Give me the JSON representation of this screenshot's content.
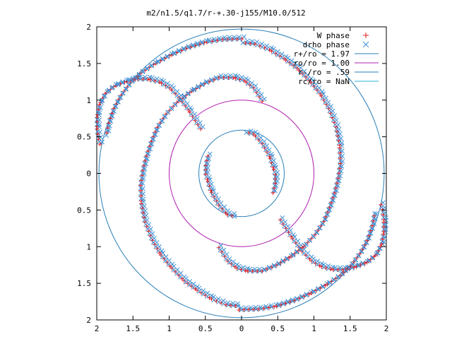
{
  "chart_data": {
    "type": "scatter",
    "title": "m2/n1.5/q1.7/r-+.30-j155/M10.0/512",
    "xlim": [
      -2,
      2
    ],
    "ylim": [
      -2,
      2
    ],
    "x_tick_labels": [
      "2",
      "1.5",
      "1",
      "0.5",
      "0",
      "0.5",
      "1",
      "1.5",
      "2"
    ],
    "y_tick_labels": [
      "2",
      "1.5",
      "1",
      "0.5",
      "0",
      "0.5",
      "1",
      "1.5",
      "2"
    ],
    "x_tick_values": [
      -2,
      -1.5,
      -1,
      -0.5,
      0,
      0.5,
      1,
      1.5,
      2
    ],
    "y_tick_values": [
      2,
      1.5,
      1,
      0.5,
      0,
      -0.5,
      -1,
      -1.5,
      -2
    ],
    "grid": false,
    "legend_position": "top-right",
    "legend": [
      {
        "label": "W phase",
        "color": "#e31a1c",
        "marker": "plus"
      },
      {
        "label": "drho phase",
        "color": "#3b8fd4",
        "marker": "cross"
      },
      {
        "label": "r+/ro = 1.97",
        "color": "#2a7fb8",
        "marker": "line"
      },
      {
        "label": "ro/ro = 1.00",
        "color": "#b021b0",
        "marker": "line"
      },
      {
        "label": "r-/ro = .59",
        "color": "#2a7fb8",
        "marker": "line"
      },
      {
        "label": "rc/ro = NaN",
        "color": "#29b3d9",
        "marker": "line"
      }
    ],
    "circles": [
      {
        "name": "r+/ro = 1.97",
        "radius": 1.97,
        "color": "#2a7fb8"
      },
      {
        "name": "ro/ro = 1.00",
        "radius": 1.0,
        "color": "#b021b0"
      },
      {
        "name": "r-/ro = .59",
        "radius": 0.59,
        "color": "#2a7fb8"
      }
    ],
    "spiral_arms": [
      {
        "id": "arm-a",
        "points": [
          [
            -0.55,
            0.62
          ],
          [
            -0.72,
            0.88
          ],
          [
            -0.85,
            1.05
          ],
          [
            -0.98,
            1.18
          ],
          [
            -1.12,
            1.26
          ],
          [
            -1.28,
            1.3
          ],
          [
            -1.45,
            1.3
          ],
          [
            -1.6,
            1.26
          ],
          [
            -1.75,
            1.2
          ],
          [
            -1.87,
            1.1
          ],
          [
            -1.95,
            0.95
          ],
          [
            -1.98,
            0.78
          ],
          [
            -1.98,
            0.62
          ],
          [
            -1.96,
            0.48
          ],
          [
            -1.93,
            0.38
          ]
        ]
      },
      {
        "id": "arm-b",
        "points": [
          [
            0.55,
            -0.62
          ],
          [
            0.72,
            -0.88
          ],
          [
            0.85,
            -1.05
          ],
          [
            0.98,
            -1.18
          ],
          [
            1.12,
            -1.26
          ],
          [
            1.28,
            -1.3
          ],
          [
            1.45,
            -1.3
          ],
          [
            1.6,
            -1.26
          ],
          [
            1.75,
            -1.2
          ],
          [
            1.87,
            -1.1
          ],
          [
            1.95,
            -0.95
          ],
          [
            1.98,
            -0.78
          ],
          [
            1.98,
            -0.62
          ],
          [
            1.96,
            -0.48
          ],
          [
            1.93,
            -0.38
          ]
        ]
      },
      {
        "id": "arm-c",
        "points": [
          [
            0.3,
            1.0
          ],
          [
            0.18,
            1.18
          ],
          [
            0.05,
            1.28
          ],
          [
            -0.1,
            1.32
          ],
          [
            -0.3,
            1.32
          ],
          [
            -0.5,
            1.24
          ],
          [
            -0.7,
            1.12
          ],
          [
            -0.88,
            0.98
          ],
          [
            -1.03,
            0.82
          ],
          [
            -1.15,
            0.64
          ],
          [
            -1.23,
            0.45
          ],
          [
            -1.3,
            0.25
          ],
          [
            -1.35,
            0.05
          ],
          [
            -1.38,
            -0.15
          ],
          [
            -1.37,
            -0.4
          ],
          [
            -1.32,
            -0.65
          ],
          [
            -1.22,
            -0.9
          ],
          [
            -1.1,
            -1.1
          ],
          [
            -0.95,
            -1.28
          ],
          [
            -0.78,
            -1.45
          ],
          [
            -0.6,
            -1.58
          ],
          [
            -0.4,
            -1.7
          ],
          [
            -0.2,
            -1.78
          ],
          [
            0.0,
            -1.8
          ]
        ]
      },
      {
        "id": "arm-d",
        "points": [
          [
            -0.3,
            -1.0
          ],
          [
            -0.18,
            -1.18
          ],
          [
            -0.05,
            -1.28
          ],
          [
            0.1,
            -1.32
          ],
          [
            0.3,
            -1.32
          ],
          [
            0.5,
            -1.24
          ],
          [
            0.7,
            -1.12
          ],
          [
            0.88,
            -0.98
          ],
          [
            1.03,
            -0.82
          ],
          [
            1.15,
            -0.64
          ],
          [
            1.23,
            -0.45
          ],
          [
            1.3,
            -0.25
          ],
          [
            1.35,
            -0.05
          ],
          [
            1.38,
            0.15
          ],
          [
            1.37,
            0.4
          ],
          [
            1.32,
            0.65
          ],
          [
            1.22,
            0.9
          ],
          [
            1.1,
            1.1
          ],
          [
            0.95,
            1.28
          ],
          [
            0.78,
            1.45
          ],
          [
            0.6,
            1.58
          ],
          [
            0.4,
            1.7
          ],
          [
            0.2,
            1.78
          ],
          [
            0.0,
            1.8
          ]
        ]
      },
      {
        "id": "arm-e",
        "points": [
          [
            0.02,
            1.85
          ],
          [
            -0.25,
            1.84
          ],
          [
            -0.5,
            1.8
          ],
          [
            -0.75,
            1.72
          ],
          [
            -0.98,
            1.62
          ],
          [
            -1.2,
            1.5
          ],
          [
            -1.38,
            1.38
          ],
          [
            -1.52,
            1.25
          ],
          [
            -1.65,
            1.08
          ],
          [
            -1.75,
            0.9
          ],
          [
            -1.82,
            0.7
          ],
          [
            -1.86,
            0.5
          ]
        ]
      },
      {
        "id": "arm-f",
        "points": [
          [
            -0.02,
            -1.85
          ],
          [
            0.25,
            -1.84
          ],
          [
            0.5,
            -1.8
          ],
          [
            0.75,
            -1.72
          ],
          [
            0.98,
            -1.62
          ],
          [
            1.2,
            -1.5
          ],
          [
            1.38,
            -1.38
          ],
          [
            1.52,
            -1.25
          ],
          [
            1.65,
            -1.08
          ],
          [
            1.75,
            -0.9
          ],
          [
            1.82,
            -0.7
          ],
          [
            1.86,
            -0.5
          ]
        ]
      },
      {
        "id": "arm-g",
        "points": [
          [
            -0.45,
            0.25
          ],
          [
            -0.48,
            0.12
          ],
          [
            -0.48,
            0.0
          ],
          [
            -0.45,
            -0.1
          ],
          [
            -0.4,
            -0.25
          ],
          [
            -0.3,
            -0.42
          ],
          [
            -0.18,
            -0.55
          ],
          [
            -0.05,
            -0.58
          ]
        ]
      },
      {
        "id": "arm-h",
        "points": [
          [
            0.45,
            -0.25
          ],
          [
            0.48,
            -0.12
          ],
          [
            0.48,
            0.0
          ],
          [
            0.45,
            0.1
          ],
          [
            0.4,
            0.25
          ],
          [
            0.3,
            0.42
          ],
          [
            0.18,
            0.55
          ],
          [
            0.05,
            0.58
          ]
        ]
      }
    ]
  }
}
